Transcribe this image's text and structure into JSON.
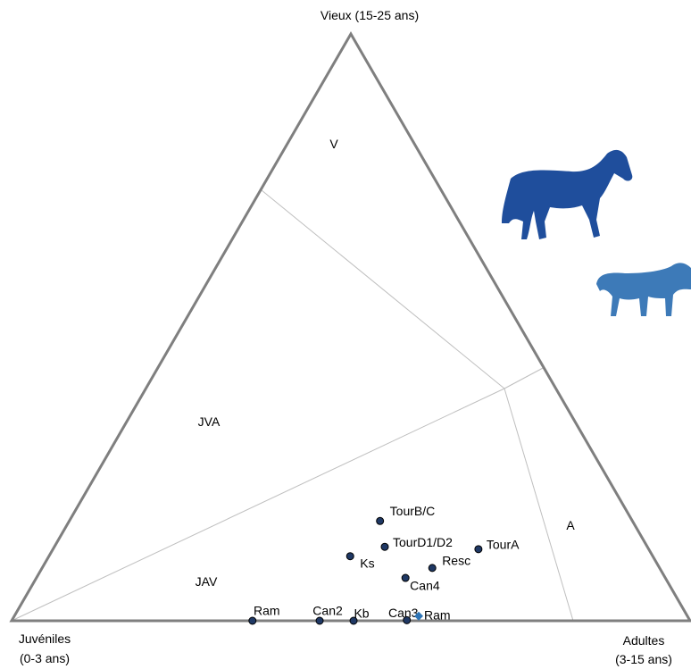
{
  "chart_data": {
    "type": "ternary",
    "axes": {
      "top": [
        "Vieux (15-25 ans)"
      ],
      "left": [
        "Juvéniles",
        "(0-3 ans)"
      ],
      "right": [
        "Adultes",
        "(3-15 ans)"
      ]
    },
    "zones": [
      "V",
      "JVA",
      "JAV",
      "A"
    ],
    "points": [
      {
        "name": "Ram",
        "juveniles": 64.5,
        "adultes": 35.5,
        "vieux": 0,
        "color": "#1f3864",
        "marker": "circle"
      },
      {
        "name": "Can2",
        "juveniles": 54.6,
        "adultes": 45.4,
        "vieux": 0,
        "color": "#1f3864",
        "marker": "circle"
      },
      {
        "name": "Kb",
        "juveniles": 49.6,
        "adultes": 50.4,
        "vieux": 0,
        "color": "#1f3864",
        "marker": "circle"
      },
      {
        "name": "Can3",
        "juveniles": 41.7,
        "adultes": 58.2,
        "vieux": 0.1,
        "color": "#1f3864",
        "marker": "circle"
      },
      {
        "name": "Ram",
        "juveniles": 39.6,
        "adultes": 59.6,
        "vieux": 0.8,
        "color": "#2e75b6",
        "marker": "diamond"
      },
      {
        "name": "TourB/C",
        "juveniles": 37.2,
        "adultes": 45.8,
        "vieux": 17.0,
        "color": "#1f3864",
        "marker": "circle"
      },
      {
        "name": "TourD1/D2",
        "juveniles": 38.7,
        "adultes": 48.7,
        "vieux": 12.6,
        "color": "#1f3864",
        "marker": "circle"
      },
      {
        "name": "Ks",
        "juveniles": 44.6,
        "adultes": 44.4,
        "vieux": 11.0,
        "color": "#1f3864",
        "marker": "circle"
      },
      {
        "name": "TourA",
        "juveniles": 25.1,
        "adultes": 62.7,
        "vieux": 12.2,
        "color": "#1f3864",
        "marker": "circle"
      },
      {
        "name": "Resc",
        "juveniles": 33.5,
        "adultes": 57.5,
        "vieux": 9.0,
        "color": "#1f3864",
        "marker": "circle"
      },
      {
        "name": "Can4",
        "juveniles": 38.3,
        "adultes": 54.4,
        "vieux": 7.3,
        "color": "#1f3864",
        "marker": "circle"
      }
    ]
  }
}
